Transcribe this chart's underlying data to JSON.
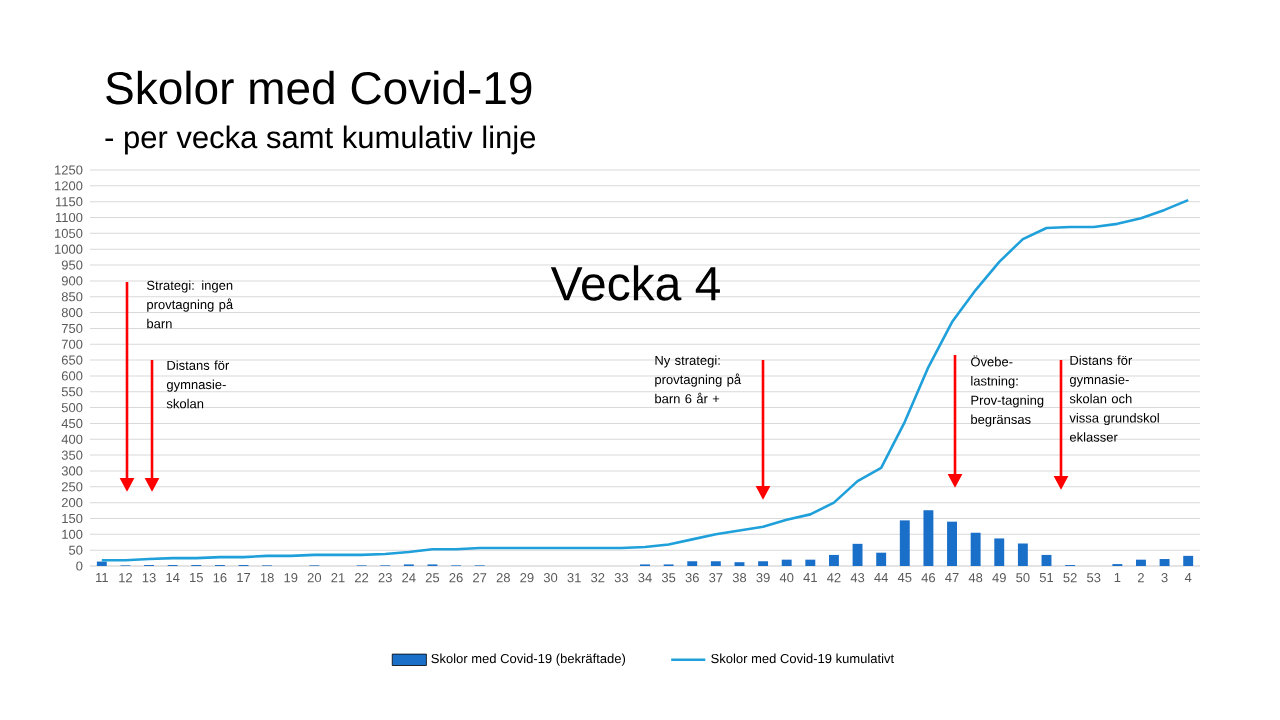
{
  "chart_data": {
    "type": "bar",
    "title": "Skolor med Covid-19",
    "subtitle": "- per vecka samt kumulativ linje",
    "categories": [
      "11",
      "12",
      "13",
      "14",
      "15",
      "16",
      "17",
      "18",
      "19",
      "20",
      "21",
      "22",
      "23",
      "24",
      "25",
      "26",
      "27",
      "28",
      "29",
      "30",
      "31",
      "32",
      "33",
      "34",
      "35",
      "36",
      "37",
      "38",
      "39",
      "40",
      "41",
      "42",
      "43",
      "44",
      "45",
      "46",
      "47",
      "48",
      "49",
      "50",
      "51",
      "52",
      "53",
      "1",
      "2",
      "3",
      "4"
    ],
    "series": [
      {
        "name": "Skolor med Covid-19 (bekräftade)",
        "color": "#1a6fc8",
        "values": [
          14,
          2,
          3,
          3,
          3,
          3,
          3,
          2,
          0,
          2,
          0,
          2,
          2,
          5,
          5,
          2,
          2,
          0,
          0,
          0,
          0,
          0,
          0,
          5,
          5,
          15,
          15,
          12,
          15,
          20,
          20,
          35,
          70,
          42,
          144,
          176,
          140,
          105,
          87,
          71,
          35,
          3,
          0,
          6,
          20,
          22,
          32
        ]
      },
      {
        "name": "Skolor med Covid-19 kumulativt",
        "type": "line",
        "color": "#1fa0da",
        "values": [
          18,
          18,
          22,
          25,
          25,
          28,
          28,
          32,
          32,
          35,
          35,
          35,
          38,
          44,
          53,
          53,
          57,
          57,
          57,
          57,
          57,
          57,
          57,
          60,
          68,
          84,
          100,
          112,
          124,
          146,
          163,
          200,
          268,
          310,
          455,
          628,
          770,
          871,
          960,
          1032,
          1067,
          1070,
          1070,
          1080,
          1098,
          1124,
          1155
        ]
      }
    ],
    "ylim": [
      0,
      1250
    ],
    "yticks": [
      0,
      50,
      100,
      150,
      200,
      250,
      300,
      350,
      400,
      450,
      500,
      550,
      600,
      650,
      700,
      750,
      800,
      850,
      900,
      950,
      1000,
      1050,
      1100,
      1150,
      1200,
      1250
    ],
    "grid": "y",
    "legend": "bottom",
    "annotations": [
      "Strategi: ingen provtagning på barn",
      "Distans för gymnasie-skolan",
      "Ny strategi: provtagning på barn 6 år +",
      "Övebe-lastning: Prov-tagning begränsas",
      "Distans för gymnasie-skolan och vissa grundskol eklasser",
      "Vecka 4"
    ]
  }
}
